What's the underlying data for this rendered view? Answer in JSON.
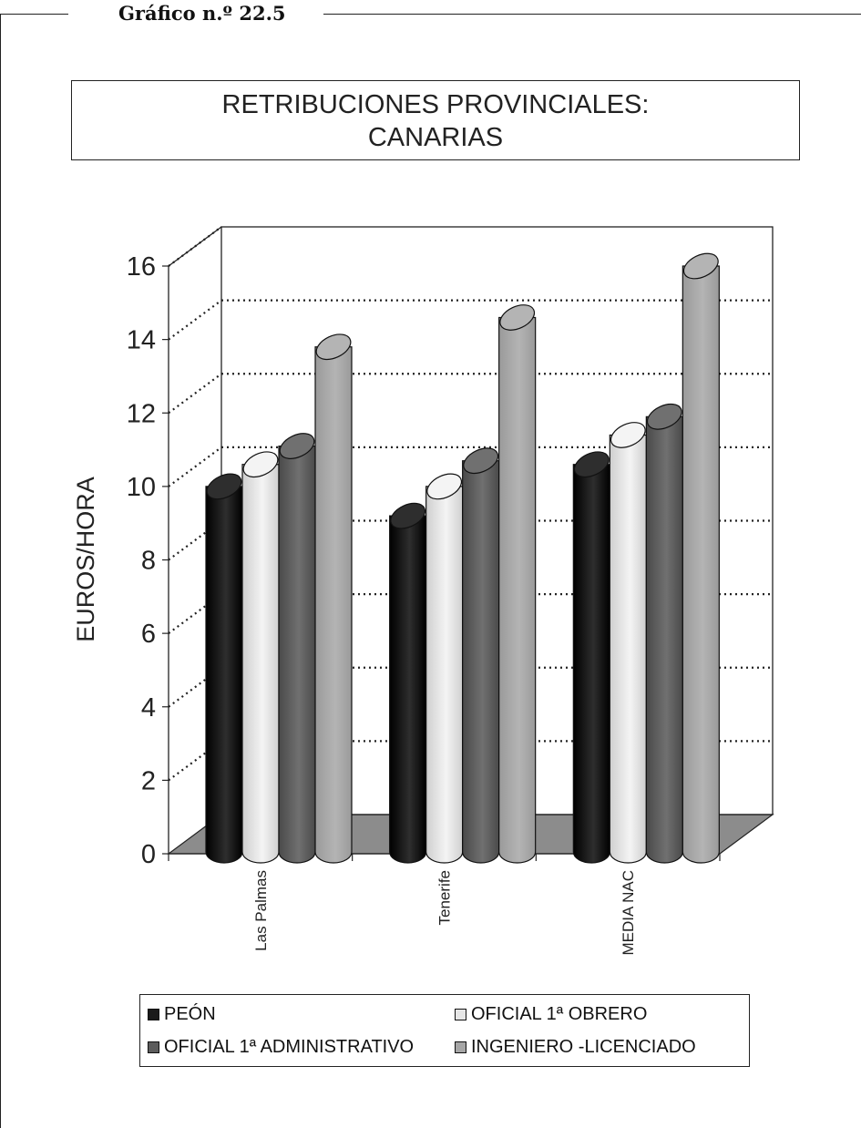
{
  "caption": "Gráfico n.º 22.5",
  "chart_data": {
    "type": "bar",
    "title_lines": [
      "RETRIBUCIONES PROVINCIALES:",
      "CANARIAS"
    ],
    "xlabel": "",
    "ylabel": "EUROS/HORA",
    "ylim": [
      0,
      16
    ],
    "yticks": [
      "0",
      "2",
      "4",
      "6",
      "8",
      "10",
      "12",
      "14",
      "16"
    ],
    "categories": [
      "Las Palmas",
      "Tenerife",
      "MEDIA NAC"
    ],
    "series": [
      {
        "name": "PEÓN",
        "values": [
          9.9,
          9.1,
          10.5
        ],
        "color": "#1a1a1a"
      },
      {
        "name": "OFICIAL 1ª OBRERO",
        "values": [
          10.5,
          9.9,
          11.3
        ],
        "color": "#e6e6e6"
      },
      {
        "name": "OFICIAL 1ª ADMINISTRATIVO",
        "values": [
          11.0,
          10.6,
          11.8
        ],
        "color": "#5c5c5c"
      },
      {
        "name": "INGENIERO -LICENCIADO",
        "values": [
          13.7,
          14.5,
          15.9
        ],
        "color": "#a6a6a6"
      }
    ],
    "grid": true,
    "chart_style": "3d-cylinder",
    "legend_position": "bottom"
  }
}
